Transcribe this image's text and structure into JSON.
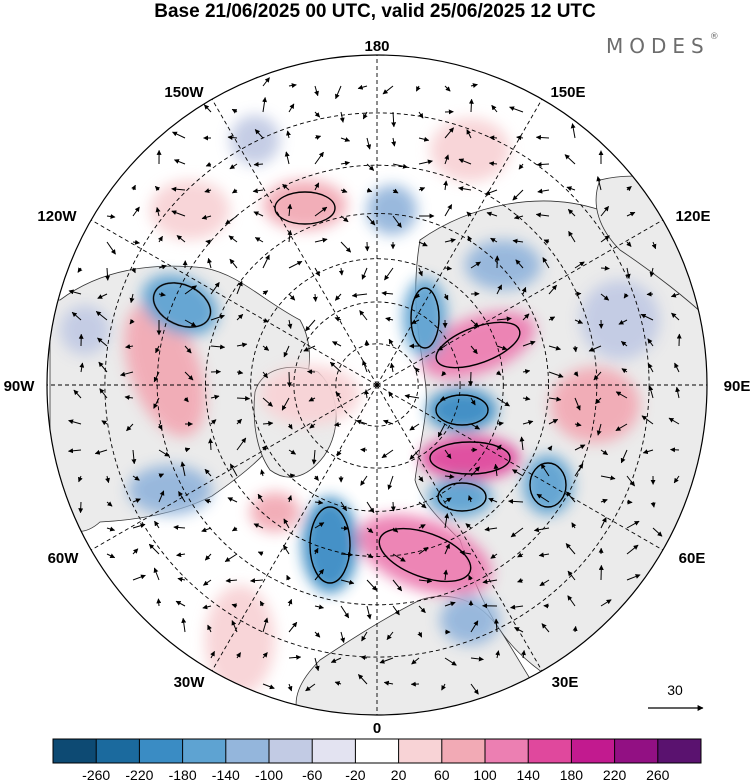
{
  "header": {
    "title": "Base 21/06/2025 00 UTC, valid 25/06/2025 12 UTC",
    "brand": "MODES",
    "brand_mark": "®"
  },
  "map": {
    "projection": "north-polar-stereographic",
    "longitude_labels": [
      "180",
      "150E",
      "120E",
      "90E",
      "60E",
      "30E",
      "0",
      "30W",
      "60W",
      "90W",
      "120W",
      "150W"
    ],
    "latitude_circles_deg": [
      80,
      70,
      60,
      50,
      40,
      30
    ],
    "land_fill_color": "#ebebeb",
    "ocean_fill_color": "#ffffff"
  },
  "wind_reference": {
    "label": "30",
    "units": "vector scale"
  },
  "colorbar": {
    "tick_labels": [
      "-260",
      "-220",
      "-180",
      "-140",
      "-100",
      "-60",
      "-20",
      "20",
      "60",
      "100",
      "140",
      "180",
      "220",
      "260"
    ],
    "colors": [
      "#0d4a73",
      "#1b6a9e",
      "#3a8cc4",
      "#5ea3d2",
      "#94b6dc",
      "#c2cbe4",
      "#e3e3f1",
      "#ffffff",
      "#f8d3d6",
      "#f2aab5",
      "#ec7fb2",
      "#e0489d",
      "#c21a8f",
      "#921083",
      "#5a126f"
    ]
  }
}
